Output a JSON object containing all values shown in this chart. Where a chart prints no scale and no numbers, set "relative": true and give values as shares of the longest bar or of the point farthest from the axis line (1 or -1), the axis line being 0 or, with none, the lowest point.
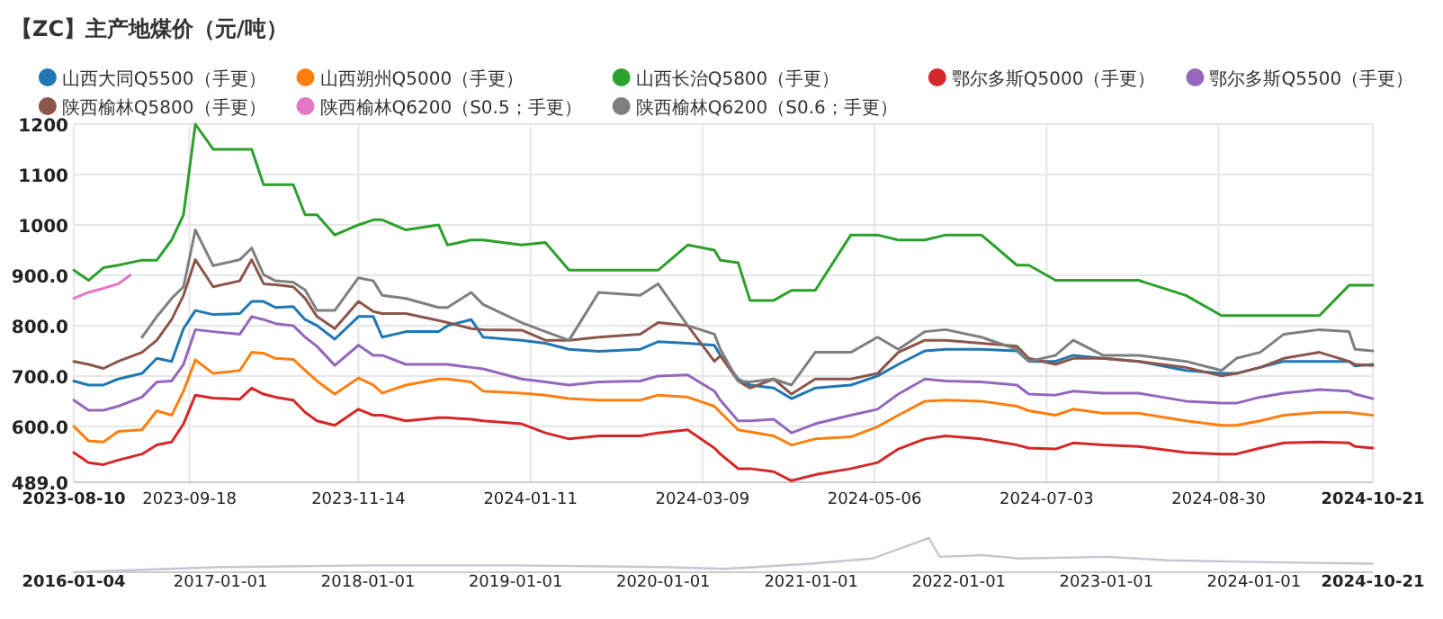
{
  "chart_data": [
    {
      "type": "line",
      "title": "【ZC】主产地煤价（元/吨）",
      "legend": "top",
      "grid": true,
      "xlim": [
        "2023-08-10",
        "2024-10-21"
      ],
      "xticks": [
        "2023-08-10",
        "2023-09-18",
        "2023-11-14",
        "2024-01-11",
        "2024-03-09",
        "2024-05-06",
        "2024-07-03",
        "2024-08-30",
        "2024-10-21"
      ],
      "ylim": [
        489,
        1200
      ],
      "yticks": [
        {
          "value": 489,
          "label": "489.0"
        },
        {
          "value": 600,
          "label": "600.0"
        },
        {
          "value": 700,
          "label": "700.0"
        },
        {
          "value": 800,
          "label": "800.0"
        },
        {
          "value": 900,
          "label": "900.0"
        },
        1000,
        1100,
        1200
      ],
      "x": [
        "2023-08-10",
        "2023-08-15",
        "2023-08-20",
        "2023-08-25",
        "2023-09-02",
        "2023-09-07",
        "2023-09-12",
        "2023-09-16",
        "2023-09-20",
        "2023-09-26",
        "2023-10-05",
        "2023-10-09",
        "2023-10-13",
        "2023-10-17",
        "2023-10-23",
        "2023-10-27",
        "2023-10-31",
        "2023-11-06",
        "2023-11-14",
        "2023-11-19",
        "2023-11-22",
        "2023-11-30",
        "2023-12-11",
        "2023-12-14",
        "2023-12-22",
        "2023-12-26",
        "2024-01-08",
        "2024-01-16",
        "2024-01-24",
        "2024-02-03",
        "2024-02-17",
        "2024-02-23",
        "2024-03-04",
        "2024-03-13",
        "2024-03-15",
        "2024-03-21",
        "2024-03-25",
        "2024-04-02",
        "2024-04-08",
        "2024-04-16",
        "2024-04-28",
        "2024-05-07",
        "2024-05-14",
        "2024-05-23",
        "2024-05-30",
        "2024-06-11",
        "2024-06-23",
        "2024-06-27",
        "2024-07-06",
        "2024-07-12",
        "2024-07-22",
        "2024-08-03",
        "2024-08-19",
        "2024-08-31",
        "2024-09-05",
        "2024-09-13",
        "2024-09-21",
        "2024-10-03",
        "2024-10-13",
        "2024-10-15",
        "2024-10-21"
      ],
      "series": [
        {
          "name": "山西大同Q5500（手更）",
          "color": "#1f77b4",
          "values": [
            690,
            682,
            682,
            694,
            705,
            735,
            729,
            794,
            830,
            822,
            824,
            848,
            848,
            836,
            838,
            812,
            800,
            773,
            818,
            818,
            777,
            788,
            788,
            800,
            812,
            777,
            771,
            765,
            753,
            749,
            753,
            768,
            765,
            761,
            741,
            694,
            682,
            676,
            655,
            676,
            682,
            700,
            723,
            750,
            753,
            753,
            750,
            729,
            729,
            741,
            735,
            729,
            711,
            705,
            705,
            717,
            729,
            729,
            729,
            720,
            723
          ]
        },
        {
          "name": "山西朔州Q5000（手更）",
          "color": "#ff7f0e",
          "values": [
            600,
            571,
            569,
            590,
            593,
            631,
            622,
            670,
            732,
            705,
            711,
            747,
            745,
            735,
            733,
            711,
            690,
            664,
            696,
            682,
            666,
            682,
            694,
            694,
            688,
            670,
            666,
            662,
            655,
            652,
            652,
            662,
            658,
            640,
            628,
            593,
            589,
            581,
            563,
            575,
            579,
            599,
            622,
            650,
            652,
            650,
            640,
            631,
            622,
            634,
            626,
            626,
            611,
            602,
            602,
            611,
            622,
            628,
            628,
            626,
            622
          ]
        },
        {
          "name": "山西长治Q5800（手更）",
          "color": "#2ca02c",
          "values": [
            910,
            890,
            915,
            920,
            930,
            930,
            970,
            1020,
            1200,
            1150,
            1150,
            1150,
            1080,
            1080,
            1080,
            1020,
            1020,
            980,
            1000,
            1010,
            1010,
            990,
            1000,
            960,
            970,
            970,
            960,
            965,
            910,
            910,
            910,
            910,
            960,
            950,
            930,
            925,
            850,
            850,
            870,
            870,
            980,
            980,
            970,
            970,
            980,
            980,
            920,
            920,
            890,
            890,
            890,
            890,
            860,
            820,
            820,
            820,
            820,
            820,
            880,
            880,
            880
          ]
        },
        {
          "name": "鄂尔多斯Q5000（手更）",
          "color": "#d62728",
          "values": [
            548,
            528,
            524,
            533,
            545,
            563,
            569,
            605,
            662,
            656,
            654,
            676,
            664,
            658,
            652,
            628,
            611,
            602,
            634,
            622,
            622,
            611,
            617,
            617,
            614,
            611,
            605,
            587,
            575,
            581,
            581,
            587,
            593,
            557,
            545,
            516,
            516,
            510,
            492,
            504,
            516,
            528,
            555,
            575,
            581,
            575,
            563,
            557,
            555,
            567,
            563,
            560,
            548,
            545,
            545,
            557,
            567,
            569,
            567,
            560,
            557
          ]
        },
        {
          "name": "鄂尔多斯Q5500（手更）",
          "color": "#9467bd",
          "values": [
            652,
            632,
            632,
            640,
            658,
            688,
            690,
            723,
            792,
            788,
            783,
            818,
            812,
            804,
            800,
            777,
            759,
            721,
            761,
            741,
            741,
            723,
            723,
            723,
            717,
            714,
            694,
            688,
            682,
            688,
            690,
            700,
            702,
            670,
            652,
            611,
            611,
            614,
            587,
            605,
            622,
            634,
            664,
            694,
            690,
            688,
            682,
            664,
            662,
            670,
            666,
            666,
            650,
            646,
            646,
            658,
            666,
            673,
            670,
            664,
            655
          ]
        },
        {
          "name": "陕西榆林Q5800（手更）",
          "color": "#8c564b",
          "values": [
            729,
            723,
            715,
            729,
            747,
            771,
            812,
            860,
            931,
            877,
            889,
            931,
            883,
            881,
            877,
            854,
            818,
            794,
            848,
            828,
            824,
            824,
            810,
            806,
            794,
            792,
            791,
            771,
            771,
            777,
            783,
            806,
            800,
            729,
            740,
            690,
            676,
            694,
            664,
            694,
            694,
            705,
            747,
            771,
            771,
            765,
            759,
            735,
            723,
            735,
            735,
            729,
            717,
            700,
            705,
            717,
            735,
            747,
            729,
            723,
            721
          ]
        },
        {
          "name": "陕西榆林Q6200（S0.5；手更）",
          "color": "#e377c2",
          "x": [
            "2023-08-10",
            "2023-08-15",
            "2023-08-20",
            "2023-08-25",
            "2023-08-29"
          ],
          "values": [
            854,
            866,
            874,
            883,
            900
          ]
        },
        {
          "name": "陕西榆林Q6200（S0.6；手更）",
          "color": "#7f7f7f",
          "values": [
            null,
            null,
            null,
            null,
            777,
            818,
            854,
            877,
            990,
            919,
            931,
            954,
            901,
            889,
            886,
            871,
            830,
            830,
            895,
            889,
            860,
            854,
            836,
            836,
            866,
            842,
            806,
            788,
            771,
            866,
            860,
            883,
            800,
            783,
            753,
            690,
            688,
            694,
            682,
            747,
            747,
            777,
            753,
            788,
            792,
            777,
            753,
            729,
            741,
            771,
            741,
            741,
            729,
            711,
            735,
            747,
            783,
            792,
            788,
            753,
            750
          ]
        }
      ]
    },
    {
      "type": "line",
      "relative": true,
      "tick_labels": "x",
      "xlim": [
        "2016-01-04",
        "2024-10-21"
      ],
      "xticks": [
        "2016-01-04",
        "2017-01-01",
        "2018-01-01",
        "2019-01-01",
        "2020-01-01",
        "2021-01-01",
        "2022-01-01",
        "2023-01-01",
        "2024-01-01",
        "2024-10-21"
      ],
      "x": [
        "2016-01-04",
        "2017-01-01",
        "2018-01-01",
        "2019-01-01",
        "2020-01-01",
        "2020-06-01",
        "2021-01-01",
        "2021-06-01",
        "2021-10-19",
        "2021-11-15",
        "2022-03-01",
        "2022-06-01",
        "2023-01-01",
        "2023-06-01",
        "2024-01-01",
        "2024-10-21"
      ],
      "series": [
        {
          "color": "#c9c3d3",
          "values": [
            0,
            0.15,
            0.2,
            0.2,
            0.15,
            0.1,
            0.25,
            0.4,
            1,
            0.45,
            0.5,
            0.4,
            0.45,
            0.35,
            0.3,
            0.25
          ]
        }
      ]
    }
  ]
}
